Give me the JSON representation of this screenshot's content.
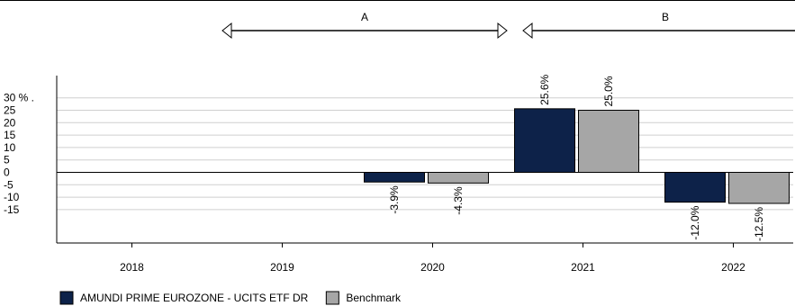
{
  "chart_data": {
    "type": "bar",
    "categories": [
      "2018",
      "2019",
      "2020",
      "2021",
      "2022"
    ],
    "series": [
      {
        "name": "AMUNDI PRIME EUROZONE - UCITS ETF DR",
        "color": "#0d2249",
        "values": [
          null,
          null,
          -3.9,
          25.6,
          -12.0
        ],
        "labels": [
          "",
          "",
          "-3.9%",
          "25.6%",
          "-12.0%"
        ]
      },
      {
        "name": "Benchmark",
        "color": "#a6a6a6",
        "values": [
          null,
          null,
          -4.3,
          25.0,
          -12.5
        ],
        "labels": [
          "",
          "",
          "-4.3%",
          "25.0%",
          "-12.5%"
        ]
      }
    ],
    "yticks": [
      {
        "value": 30,
        "label": "30 % ."
      },
      {
        "value": 25,
        "label": "25"
      },
      {
        "value": 20,
        "label": "20"
      },
      {
        "value": 15,
        "label": "15"
      },
      {
        "value": 10,
        "label": "10"
      },
      {
        "value": 5,
        "label": "5"
      },
      {
        "value": 0,
        "label": "0"
      },
      {
        "value": -5,
        "label": "-5"
      },
      {
        "value": -10,
        "label": "-10"
      },
      {
        "value": -15,
        "label": "-15"
      }
    ],
    "ylim": [
      -15,
      30
    ],
    "grid": true,
    "legend_position": "bottom-left",
    "periods": [
      {
        "label": "A",
        "from": "2019",
        "to": "2020"
      },
      {
        "label": "B",
        "from": "2021",
        "to": "2022"
      }
    ]
  }
}
